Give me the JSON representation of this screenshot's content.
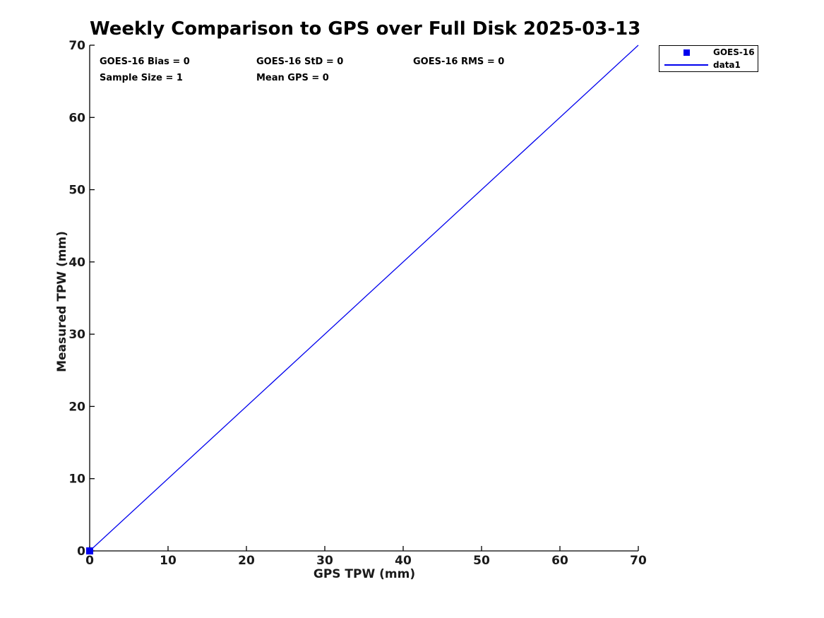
{
  "chart_data": {
    "type": "scatter",
    "title": "Weekly Comparison to GPS over Full Disk 2025-03-13",
    "xlabel": "GPS TPW (mm)",
    "ylabel": "Measured TPW (mm)",
    "xlim": [
      0,
      70
    ],
    "ylim": [
      0,
      70
    ],
    "xticks": [
      0,
      10,
      20,
      30,
      40,
      50,
      60,
      70
    ],
    "yticks": [
      0,
      10,
      20,
      30,
      40,
      50,
      60,
      70
    ],
    "grid": false,
    "axis_color": "#000000",
    "tick_label_color": "#1a1a1a",
    "background": "#ffffff",
    "series": [
      {
        "name": "GOES-16",
        "type": "scatter",
        "marker": "square",
        "color": "#0000ee",
        "points": [
          [
            0,
            0
          ]
        ]
      },
      {
        "name": "data1",
        "type": "line",
        "color": "#0000ee",
        "points": [
          [
            0,
            0
          ],
          [
            70,
            70
          ]
        ]
      }
    ],
    "annotations": {
      "bias": "GOES-16 Bias = 0",
      "std": "GOES-16 StD = 0",
      "rms": "GOES-16 RMS = 0",
      "sample_size": "Sample Size = 1",
      "mean_gps": "Mean GPS = 0"
    },
    "legend": {
      "position": "outside-top-right",
      "entries": [
        {
          "label": "GOES-16",
          "swatch": "square-marker",
          "color": "#0000ee"
        },
        {
          "label": "data1",
          "swatch": "line",
          "color": "#0000ee"
        }
      ]
    }
  }
}
